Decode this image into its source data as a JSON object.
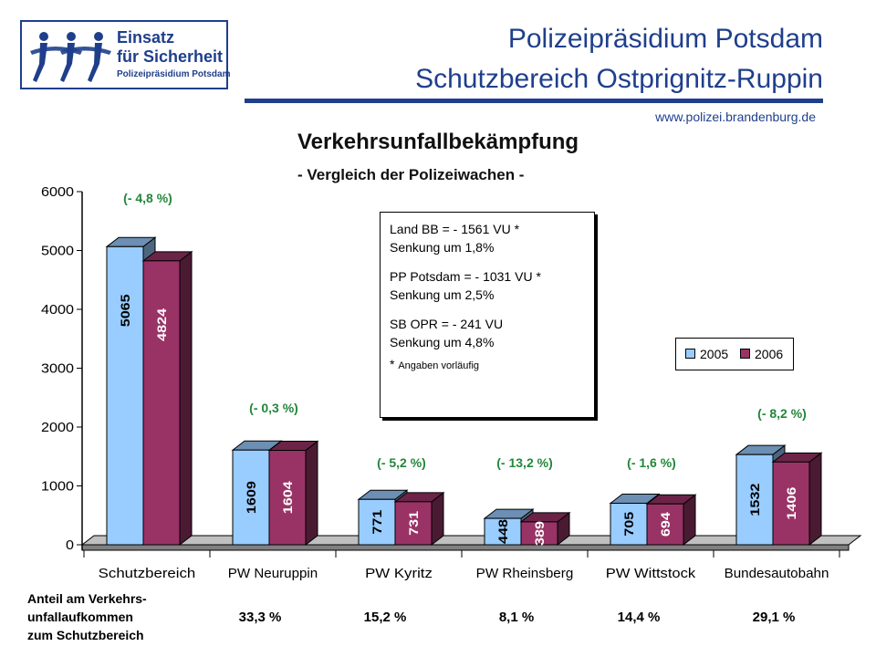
{
  "logo": {
    "line1": "Einsatz",
    "line2": "für Sicherheit",
    "line3": "Polizeipräsidium Potsdam"
  },
  "header": {
    "line1": "Polizeipräsidium Potsdam",
    "line2": "Schutzbereich Ostprignitz-Ruppin",
    "url": "www.polizei.brandenburg.de"
  },
  "colors": {
    "brand": "#1f3f8c",
    "series_2005": "#99ccff",
    "series_2006": "#993366",
    "change_label": "#23863a"
  },
  "chart_data": {
    "type": "bar",
    "title": "Verkehrsunfallbekämpfung",
    "subtitle": "- Vergleich der Polizeiwachen -",
    "categories": [
      "Schutzbereich",
      "PW Neuruppin",
      "PW Kyritz",
      "PW Rheinsberg",
      "PW Wittstock",
      "Bundesautobahn"
    ],
    "series": [
      {
        "name": "2005",
        "values": [
          5065,
          1609,
          771,
          448,
          705,
          1532
        ]
      },
      {
        "name": "2006",
        "values": [
          4824,
          1604,
          731,
          389,
          694,
          1406
        ]
      }
    ],
    "change_labels": [
      "(- 4,8 %)",
      "(- 0,3 %)",
      "(- 5,2 %)",
      "(- 13,2 %)",
      "(- 1,6 %)",
      "(- 8,2 %)"
    ],
    "ylim": [
      0,
      6000
    ],
    "yticks": [
      0,
      1000,
      2000,
      3000,
      4000,
      5000,
      6000
    ],
    "legend_position": "right",
    "grid": false
  },
  "infobox": {
    "land_line1": "Land BB = - 1561 VU *",
    "land_line2": "Senkung um 1,8%",
    "pp_line1": "PP Potsdam = - 1031 VU *",
    "pp_line2": "Senkung um 2,5%",
    "sb_line1": "SB OPR = - 241 VU",
    "sb_line2": "Senkung um 4,8%",
    "note_star": "*",
    "note_text": "Angaben vorläufig"
  },
  "legend": {
    "label_2005": "2005",
    "label_2006": "2006"
  },
  "footer": {
    "label_line1": "Anteil am Verkehrs-",
    "label_line2": "unfallaufkommen",
    "label_line3": "zum Schutzbereich",
    "shares": [
      "33,3 %",
      "15,2 %",
      "8,1 %",
      "14,4 %",
      "29,1 %"
    ]
  }
}
